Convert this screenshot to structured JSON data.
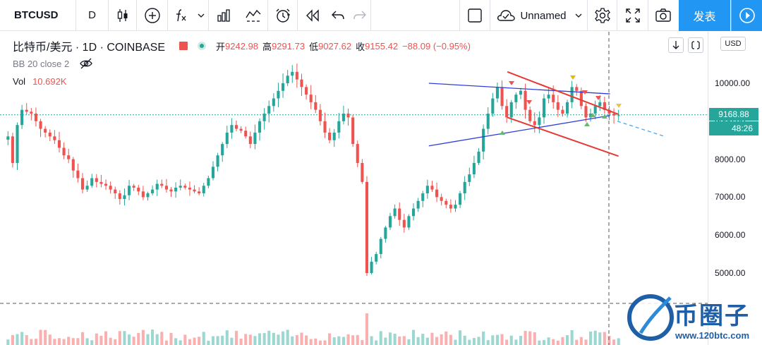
{
  "toolbar": {
    "symbol": "BTCUSD",
    "interval": "D",
    "layout_name": "Unnamed",
    "publish_label": "发表"
  },
  "legend": {
    "title": "比特币/美元 · 1D · COINBASE",
    "open_label": "开",
    "open": "9242.98",
    "high_label": "高",
    "high": "9291.73",
    "low_label": "低",
    "low": "9027.62",
    "close_label": "收",
    "close": "9155.42",
    "change": "−88.09 (−0.95%)",
    "indicator": "BB 20 close 2",
    "volume_label": "Vol",
    "volume": "10.692K"
  },
  "axis": {
    "currency": "USD",
    "current_price": "9168.88",
    "countdown": "48:26"
  },
  "watermark": {
    "text": "币圈子",
    "url": "www.120btc.com"
  },
  "colors": {
    "up": "#26a69a",
    "down": "#ef5350",
    "trend_blue": "#2f3fd9",
    "trend_red": "#e53935",
    "accent": "#2196f3"
  },
  "chart_data": {
    "type": "candlestick",
    "symbol": "BTCUSD",
    "exchange": "COINBASE",
    "interval": "1D",
    "y_ticks": [
      5000,
      6000,
      7000,
      8000,
      9000,
      10000
    ],
    "ylim": [
      4500,
      10950
    ],
    "last_price": 9168.88,
    "candles_close": [
      8600,
      7900,
      8900,
      9300,
      9250,
      9200,
      9000,
      8800,
      8700,
      8600,
      8500,
      8300,
      8100,
      8000,
      7700,
      7500,
      7200,
      7300,
      7500,
      7400,
      7350,
      7300,
      7200,
      7100,
      6950,
      7050,
      7300,
      7250,
      7150,
      7000,
      7100,
      7200,
      7350,
      7300,
      7200,
      7150,
      7250,
      7300,
      7250,
      7200,
      7150,
      7100,
      7300,
      7500,
      7800,
      8100,
      8400,
      8700,
      8900,
      8800,
      8750,
      8600,
      8400,
      8700,
      9000,
      9200,
      9400,
      9600,
      9800,
      10000,
      10200,
      10300,
      10100,
      9900,
      9700,
      9500,
      9300,
      9000,
      8700,
      8500,
      8700,
      9000,
      9200,
      9100,
      8400,
      7900,
      7400,
      5000,
      5300,
      5500,
      5900,
      6200,
      6500,
      6700,
      6400,
      6200,
      6500,
      6700,
      6900,
      7100,
      7300,
      7200,
      7000,
      6900,
      6800,
      6700,
      6800,
      7100,
      7400,
      7600,
      7900,
      8200,
      8800,
      9200,
      9600,
      9900,
      9400,
      9100,
      9500,
      9700,
      9800,
      9300,
      9000,
      8900,
      9100,
      9600,
      9700,
      9500,
      9300,
      9200,
      9500,
      9900,
      9800,
      9400,
      9100,
      9200,
      9400,
      9500,
      9300,
      9200,
      9150,
      9155
    ],
    "series": [
      {
        "name": "",
        "kind": "trendline",
        "color": "#2f3fd9",
        "points": [
          [
            0.606,
            8350
          ],
          [
            0.862,
            9150
          ]
        ]
      },
      {
        "name": "",
        "kind": "trendline",
        "color": "#2f3fd9",
        "points": [
          [
            0.606,
            10000
          ],
          [
            0.862,
            9720
          ]
        ]
      },
      {
        "name": "",
        "kind": "trendline",
        "color": "#e53935",
        "points": [
          [
            0.717,
            10300
          ],
          [
            0.874,
            9180
          ]
        ]
      },
      {
        "name": "",
        "kind": "trendline",
        "color": "#e53935",
        "points": [
          [
            0.717,
            9100
          ],
          [
            0.874,
            8080
          ]
        ]
      }
    ]
  }
}
